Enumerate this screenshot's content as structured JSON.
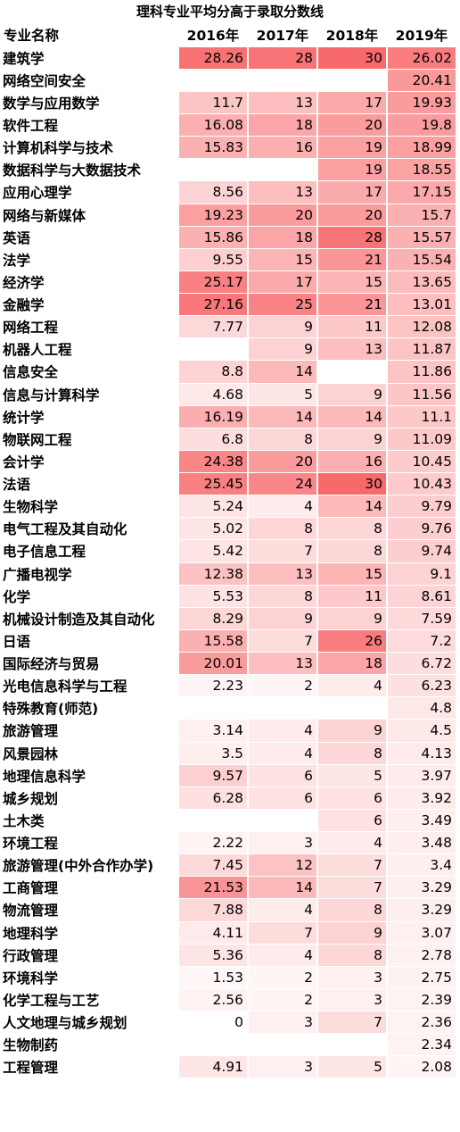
{
  "chart_data": {
    "type": "table",
    "title": "理科专业平均分高于录取分数线",
    "columns": [
      "专业名称",
      "2016年",
      "2017年",
      "2018年",
      "2019年"
    ],
    "rows": [
      [
        "建筑学",
        "28.26",
        "28",
        "30",
        "26.02"
      ],
      [
        "网络空间安全",
        "",
        "",
        "",
        "20.41"
      ],
      [
        "数学与应用数学",
        "11.7",
        "13",
        "17",
        "19.93"
      ],
      [
        "软件工程",
        "16.08",
        "18",
        "20",
        "19.8"
      ],
      [
        "计算机科学与技术",
        "15.83",
        "16",
        "19",
        "18.99"
      ],
      [
        "数据科学与大数据技术",
        "",
        "",
        "19",
        "18.55"
      ],
      [
        "应用心理学",
        "8.56",
        "13",
        "17",
        "17.15"
      ],
      [
        "网络与新媒体",
        "19.23",
        "20",
        "20",
        "15.7"
      ],
      [
        "英语",
        "15.86",
        "18",
        "28",
        "15.57"
      ],
      [
        "法学",
        "9.55",
        "15",
        "21",
        "15.54"
      ],
      [
        "经济学",
        "25.17",
        "17",
        "15",
        "13.65"
      ],
      [
        "金融学",
        "27.16",
        "25",
        "21",
        "13.01"
      ],
      [
        "网络工程",
        "7.77",
        "9",
        "11",
        "12.08"
      ],
      [
        "机器人工程",
        "",
        "9",
        "13",
        "11.87"
      ],
      [
        "信息安全",
        "8.8",
        "14",
        "",
        "11.86"
      ],
      [
        "信息与计算科学",
        "4.68",
        "5",
        "9",
        "11.56"
      ],
      [
        "统计学",
        "16.19",
        "14",
        "14",
        "11.1"
      ],
      [
        "物联网工程",
        "6.8",
        "8",
        "9",
        "11.09"
      ],
      [
        "会计学",
        "24.38",
        "20",
        "16",
        "10.45"
      ],
      [
        "法语",
        "25.45",
        "24",
        "30",
        "10.43"
      ],
      [
        "生物科学",
        "5.24",
        "4",
        "14",
        "9.79"
      ],
      [
        "电气工程及其自动化",
        "5.02",
        "8",
        "8",
        "9.76"
      ],
      [
        "电子信息工程",
        "5.42",
        "7",
        "8",
        "9.74"
      ],
      [
        "广播电视学",
        "12.38",
        "13",
        "15",
        "9.1"
      ],
      [
        "化学",
        "5.53",
        "8",
        "11",
        "8.61"
      ],
      [
        "机械设计制造及其自动化",
        "8.29",
        "9",
        "9",
        "7.59"
      ],
      [
        "日语",
        "15.58",
        "7",
        "26",
        "7.2"
      ],
      [
        "国际经济与贸易",
        "20.01",
        "13",
        "18",
        "6.72"
      ],
      [
        "光电信息科学与工程",
        "2.23",
        "2",
        "4",
        "6.23"
      ],
      [
        "特殊教育(师范)",
        "",
        "",
        "",
        "4.8"
      ],
      [
        "旅游管理",
        "3.14",
        "4",
        "9",
        "4.5"
      ],
      [
        "风景园林",
        "3.5",
        "4",
        "8",
        "4.13"
      ],
      [
        "地理信息科学",
        "9.57",
        "6",
        "5",
        "3.97"
      ],
      [
        "城乡规划",
        "6.28",
        "6",
        "6",
        "3.92"
      ],
      [
        "土木类",
        "",
        "",
        "6",
        "3.49"
      ],
      [
        "环境工程",
        "2.22",
        "3",
        "4",
        "3.48"
      ],
      [
        "旅游管理(中外合作办学)",
        "7.45",
        "12",
        "7",
        "3.4"
      ],
      [
        "工商管理",
        "21.53",
        "14",
        "7",
        "3.29"
      ],
      [
        "物流管理",
        "7.88",
        "4",
        "8",
        "3.29"
      ],
      [
        "地理科学",
        "4.11",
        "7",
        "9",
        "3.07"
      ],
      [
        "行政管理",
        "5.36",
        "4",
        "8",
        "2.78"
      ],
      [
        "环境科学",
        "1.53",
        "2",
        "3",
        "2.75"
      ],
      [
        "化学工程与工艺",
        "2.56",
        "2",
        "3",
        "2.39"
      ],
      [
        "人文地理与城乡规划",
        "0",
        "3",
        "7",
        "2.36"
      ],
      [
        "生物制药",
        "",
        "",
        "",
        "2.34"
      ],
      [
        "工程管理",
        "4.91",
        "3",
        "5",
        "2.08"
      ]
    ],
    "heat_color": "#f8696b",
    "heat_min_color": "#ffffff",
    "heat_max": 30
  }
}
